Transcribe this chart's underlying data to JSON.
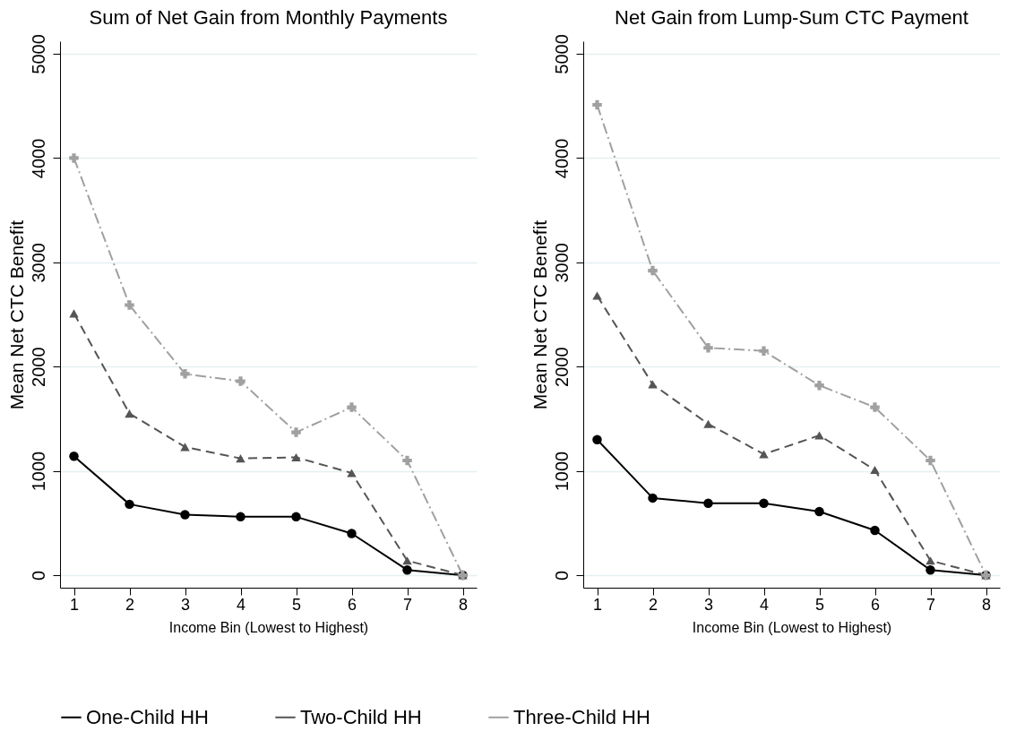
{
  "chart_data": [
    {
      "type": "line",
      "title": "Sum of Net Gain from Monthly Payments",
      "xlabel": "Income Bin (Lowest to Highest)",
      "ylabel": "Mean Net CTC Benefit",
      "categories": [
        "1",
        "2",
        "3",
        "4",
        "5",
        "6",
        "7",
        "8"
      ],
      "ylim": [
        -120,
        5120
      ],
      "yticks": [
        0,
        1000,
        2000,
        3000,
        4000,
        5000
      ],
      "grid": "y",
      "legend": "bottom",
      "series": [
        {
          "name": "One-Child HH",
          "color": "#000000",
          "marker": "circle",
          "line_style": "solid",
          "values": [
            1140,
            680,
            580,
            560,
            560,
            400,
            50,
            0
          ]
        },
        {
          "name": "Two-Child HH",
          "color": "#555555",
          "marker": "triangle",
          "line_style": "dashed",
          "values": [
            2510,
            1550,
            1230,
            1120,
            1130,
            980,
            140,
            0
          ]
        },
        {
          "name": "Three-Child HH",
          "color": "#a0a0a0",
          "marker": "cross",
          "line_style": "dashdot",
          "values": [
            4000,
            2590,
            1930,
            1860,
            1370,
            1610,
            1100,
            0
          ]
        }
      ]
    },
    {
      "type": "line",
      "title": "Net Gain from Lump-Sum CTC Payment",
      "xlabel": "Income Bin (Lowest to Highest)",
      "ylabel": "Mean Net CTC Benefit",
      "categories": [
        "1",
        "2",
        "3",
        "4",
        "5",
        "6",
        "7",
        "8"
      ],
      "ylim": [
        -120,
        5120
      ],
      "yticks": [
        0,
        1000,
        2000,
        3000,
        4000,
        5000
      ],
      "grid": "y",
      "legend": "bottom",
      "series": [
        {
          "name": "One-Child HH",
          "color": "#000000",
          "marker": "circle",
          "line_style": "solid",
          "values": [
            1300,
            740,
            690,
            690,
            610,
            430,
            50,
            0
          ]
        },
        {
          "name": "Two-Child HH",
          "color": "#555555",
          "marker": "triangle",
          "line_style": "dashed",
          "values": [
            2680,
            1830,
            1450,
            1160,
            1340,
            1010,
            140,
            0
          ]
        },
        {
          "name": "Three-Child HH",
          "color": "#a0a0a0",
          "marker": "cross",
          "line_style": "dashdot",
          "values": [
            4510,
            2920,
            2180,
            2150,
            1820,
            1610,
            1100,
            0
          ]
        }
      ]
    }
  ]
}
